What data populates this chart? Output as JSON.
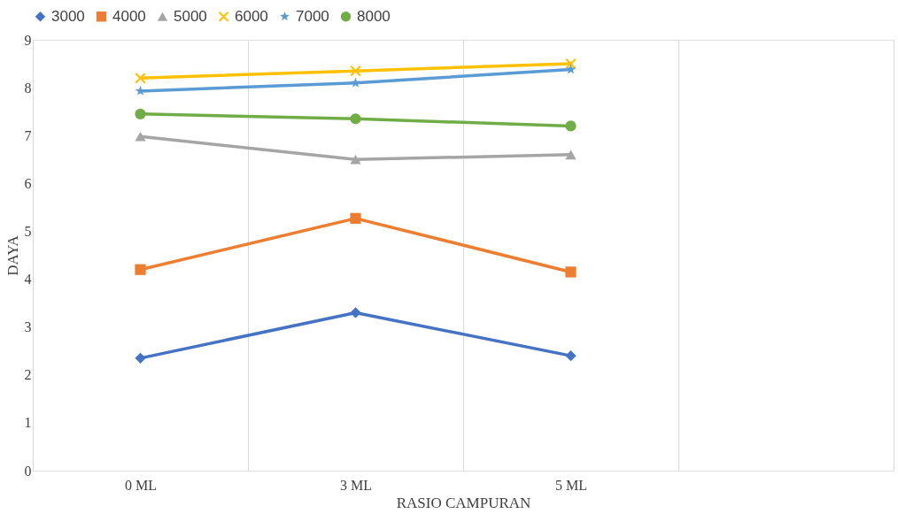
{
  "chart_data": {
    "type": "line",
    "xlabel": "RASIO CAMPURAN",
    "ylabel": "DAYA",
    "categories": [
      "0 ML",
      "3 ML",
      "5 ML",
      null
    ],
    "ylim": [
      0,
      9
    ],
    "yticks": [
      0,
      1,
      2,
      3,
      4,
      5,
      6,
      7,
      8,
      9
    ],
    "grid": "x",
    "legend": "top",
    "line_style": "solid",
    "series": [
      {
        "name": "3000",
        "color": "#4472c4",
        "marker": "diamond",
        "values": [
          2.35,
          3.3,
          2.4,
          null
        ]
      },
      {
        "name": "4000",
        "color": "#ed7d31",
        "marker": "square",
        "values": [
          4.2,
          5.27,
          4.15,
          null
        ]
      },
      {
        "name": "5000",
        "color": "#a5a5a5",
        "marker": "triangle",
        "values": [
          6.98,
          6.5,
          6.6,
          null
        ]
      },
      {
        "name": "6000",
        "color": "#ffc000",
        "marker": "cross",
        "values": [
          8.2,
          8.35,
          8.5,
          null
        ]
      },
      {
        "name": "7000",
        "color": "#5b9bd5",
        "marker": "star",
        "values": [
          7.93,
          8.1,
          8.38,
          null
        ]
      },
      {
        "name": "8000",
        "color": "#70ad47",
        "marker": "circle",
        "values": [
          7.45,
          7.35,
          7.2,
          null
        ]
      }
    ]
  }
}
